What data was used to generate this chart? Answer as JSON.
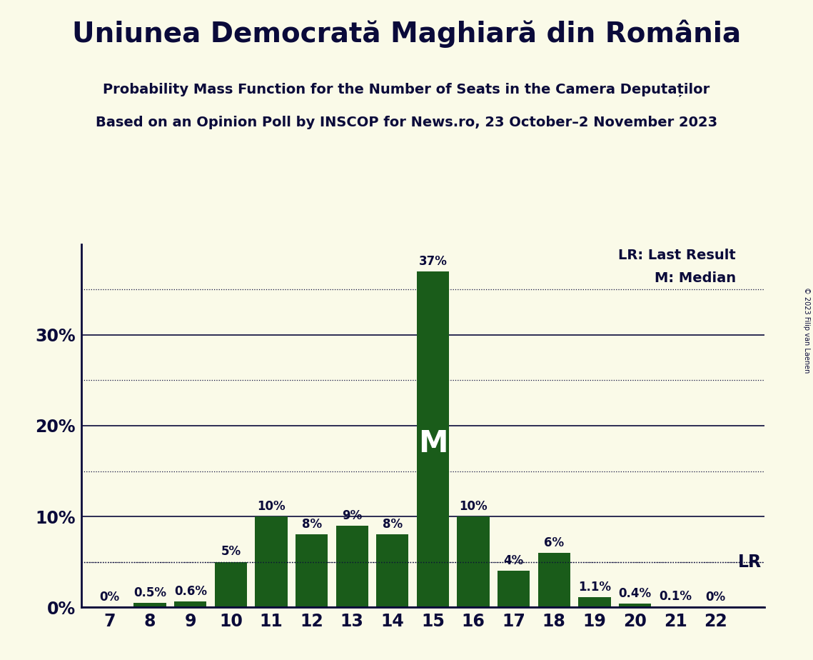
{
  "title": "Uniunea Democrată Maghiară din România",
  "subtitle1": "Probability Mass Function for the Number of Seats in the Camera Deputaților",
  "subtitle2": "Based on an Opinion Poll by INSCOP for News.ro, 23 October–2 November 2023",
  "copyright": "© 2023 Filip van Laenen",
  "seats": [
    7,
    8,
    9,
    10,
    11,
    12,
    13,
    14,
    15,
    16,
    17,
    18,
    19,
    20,
    21,
    22
  ],
  "probabilities": [
    0.0,
    0.5,
    0.6,
    5.0,
    10.0,
    8.0,
    9.0,
    8.0,
    37.0,
    10.0,
    4.0,
    6.0,
    1.1,
    0.4,
    0.1,
    0.0
  ],
  "bar_color": "#1a5c1a",
  "background_color": "#fafae8",
  "text_color": "#0a0a3a",
  "median_seat": 15,
  "lr_value": 5.0,
  "ylim": [
    0,
    40
  ],
  "yticks": [
    0,
    10,
    20,
    30
  ],
  "ytick_labels": [
    "0%",
    "10%",
    "20%",
    "30%"
  ],
  "solid_yticks": [
    0,
    10,
    20,
    30
  ],
  "dotted_yticks": [
    5,
    15,
    25,
    35
  ],
  "lr_label": "LR: Last Result",
  "median_label": "M: Median",
  "median_text": "M",
  "lr_text": "LR",
  "title_fontsize": 28,
  "subtitle_fontsize": 14,
  "tick_fontsize": 17,
  "label_fontsize": 12,
  "bar_label_fontsize": 12,
  "median_fontsize": 30
}
